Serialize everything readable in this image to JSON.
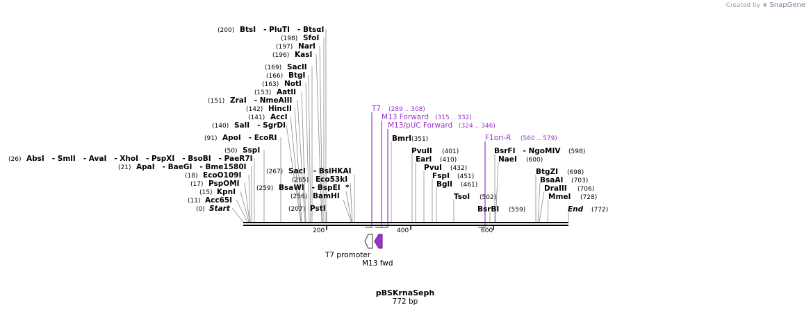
{
  "watermark": {
    "prefix": "Created by",
    "brand": "SnapGene"
  },
  "plasmid": {
    "name": "pBSKrnaSeph",
    "length": "772 bp"
  },
  "axis": {
    "start_bp": 0,
    "end_bp": 772,
    "ticks": [
      "200",
      "400",
      "600"
    ]
  },
  "colors": {
    "primer": "#9933cc",
    "line": "#000000",
    "leader": "#888888"
  },
  "sites": [
    {
      "pos": "(200)",
      "names": "BtsI   - PluTI   - BtsαI",
      "bp": 200
    },
    {
      "pos": "(198)",
      "names": "SfoI",
      "bp": 198
    },
    {
      "pos": "(197)",
      "names": "NarI",
      "bp": 197
    },
    {
      "pos": "(196)",
      "names": "KasI",
      "bp": 196
    },
    {
      "pos": "(169)",
      "names": "SacII",
      "bp": 169
    },
    {
      "pos": "(166)",
      "names": "BtgI",
      "bp": 166
    },
    {
      "pos": "(163)",
      "names": "NotI",
      "bp": 163
    },
    {
      "pos": "(153)",
      "names": "AatII",
      "bp": 153
    },
    {
      "pos": "(151)",
      "names": "ZraI   - NmeAIII",
      "bp": 151
    },
    {
      "pos": "(142)",
      "names": "HincII",
      "bp": 142
    },
    {
      "pos": "(141)",
      "names": "AccI",
      "bp": 141
    },
    {
      "pos": "(140)",
      "names": "SalI   - SgrDI",
      "bp": 140
    },
    {
      "pos": "(91)",
      "names": "ApoI   - EcoRI",
      "bp": 91
    },
    {
      "pos": "(50)",
      "names": "SspI",
      "bp": 50
    },
    {
      "pos": "(26)",
      "names": "AbsI   - SmlI   - AvaI   - XhoI   - PspXI   - BsoBI   - PaeR7I",
      "bp": 26
    },
    {
      "pos": "(21)",
      "names": "ApaI   - BaeGI   - Bme1580I",
      "bp": 21
    },
    {
      "pos": "(18)",
      "names": "EcoO109I",
      "bp": 18
    },
    {
      "pos": "(17)",
      "names": "PspOMI",
      "bp": 17
    },
    {
      "pos": "(15)",
      "names": "KpnI",
      "bp": 15
    },
    {
      "pos": "(11)",
      "names": "Acc65I",
      "bp": 11
    },
    {
      "pos": "(0)",
      "names": "Start",
      "bp": 0
    },
    {
      "pos": "(267)",
      "names": "SacI   - BsiHKAI",
      "bp": 267
    },
    {
      "pos": "(265)",
      "names": "Eco53kI",
      "bp": 265
    },
    {
      "pos": "(259)",
      "names": "BsaWI   - BspEI  *",
      "bp": 259
    },
    {
      "pos": "(256)",
      "names": "BamHI",
      "bp": 256
    },
    {
      "pos": "(207)",
      "names": "PstI",
      "bp": 207
    },
    {
      "pos": "(351)",
      "names": "BmrI",
      "bp": 351
    },
    {
      "pos": "(401)",
      "names": "PvuII",
      "bp": 401
    },
    {
      "pos": "(410)",
      "names": "EarI",
      "bp": 410
    },
    {
      "pos": "(432)",
      "names": "PvuI",
      "bp": 432
    },
    {
      "pos": "(451)",
      "names": "FspI",
      "bp": 451
    },
    {
      "pos": "(461)",
      "names": "BglI",
      "bp": 461
    },
    {
      "pos": "(502)",
      "names": "TsoI",
      "bp": 502
    },
    {
      "pos": "(559)",
      "names": "BsrBI",
      "bp": 559
    },
    {
      "pos": "(598)",
      "names": "BsrFI   - NgoMIV",
      "bp": 598
    },
    {
      "pos": "(600)",
      "names": "NaeI",
      "bp": 600
    },
    {
      "pos": "(698)",
      "names": "BtgZI",
      "bp": 698
    },
    {
      "pos": "(703)",
      "names": "BsaAI",
      "bp": 703
    },
    {
      "pos": "(706)",
      "names": "DraIII",
      "bp": 706
    },
    {
      "pos": "(728)",
      "names": "MmeI",
      "bp": 728
    },
    {
      "pos": "(772)",
      "names": "End",
      "bp": 772
    }
  ],
  "primers": [
    {
      "name": "T7",
      "range": "(289 .. 308)",
      "start": 289,
      "end": 308
    },
    {
      "name": "M13 Forward",
      "range": "(315 .. 332)",
      "start": 315,
      "end": 332
    },
    {
      "name": "M13/pUC Forward",
      "range": "(324 .. 346)",
      "start": 324,
      "end": 346
    },
    {
      "name": "F1ori-R",
      "range": "(560 .. 579)",
      "start": 560,
      "end": 579
    }
  ],
  "features": [
    {
      "name": "T7 promoter"
    },
    {
      "name": "M13 fwd"
    }
  ]
}
